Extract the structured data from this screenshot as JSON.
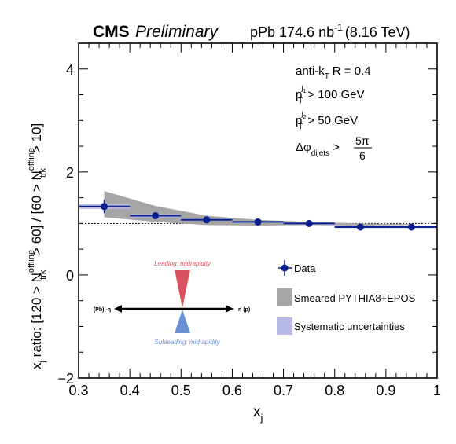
{
  "header": {
    "experiment": "CMS",
    "status": "Preliminary",
    "luminosity_prefix": "pPb 174.6 nb",
    "luminosity_exponent": "-1",
    "energy": "(8.16 TeV)"
  },
  "cuts": {
    "algorithm": "anti-k",
    "algorithm_sub": "T",
    "radius": "R = 0.4",
    "pt1_text": "> 100 GeV",
    "pt2_text": "> 50 GeV",
    "dphi_symbol": "Δφ",
    "dphi_sub": "dijets",
    "dphi_gt": ">",
    "dphi_num": "5π",
    "dphi_den": "6",
    "p": "p",
    "T": "T",
    "j1": "j",
    "j1_index": "1",
    "j2": "j",
    "j2_index": "2"
  },
  "legend": {
    "data": "Data",
    "model": "Smeared PYTHIA8+EPOS",
    "syst": "Systematic uncertainties"
  },
  "inset": {
    "leading": "Leading: midrapidity",
    "subleading": "Subleading: midrapidity",
    "left_label": "(Pb) -η",
    "right_label": "η (p)"
  },
  "colors": {
    "data": "#0a1f8f",
    "model_band": "#a6a6a6",
    "syst_band": "#b8b8e6",
    "leading": "#d9525f",
    "subleading": "#6c8fd6"
  },
  "chart_data": {
    "type": "scatter",
    "xlabel": "x",
    "xlabel_sub": "j",
    "ylabel": "x",
    "ylabel_sub": "j",
    "ylabel_rest": " ratio: [120 > N",
    "ylabel_sup1": "offline",
    "ylabel_sub1": "trk",
    "ylabel_mid": " > 60] / [60 > N",
    "ylabel_sup2": "offline",
    "ylabel_sub2": "trk",
    "ylabel_end": " > 10]",
    "xlim": [
      0.3,
      1.0
    ],
    "ylim": [
      -2,
      4.5
    ],
    "xticks": [
      0.3,
      0.4,
      0.5,
      0.6,
      0.7,
      0.8,
      0.9,
      1.0
    ],
    "xtick_labels": [
      "0.3",
      "0.4",
      "0.5",
      "0.6",
      "0.7",
      "0.8",
      "0.9",
      "1"
    ],
    "yticks": [
      -2,
      0,
      2,
      4
    ],
    "ytick_labels": [
      "−2",
      "0",
      "2",
      "4"
    ],
    "reference_line": 1.0,
    "series": [
      {
        "name": "Data",
        "bins": [
          [
            0.3,
            0.4
          ],
          [
            0.4,
            0.5
          ],
          [
            0.5,
            0.6
          ],
          [
            0.6,
            0.7
          ],
          [
            0.7,
            0.8
          ],
          [
            0.8,
            0.9
          ],
          [
            0.9,
            1.0
          ]
        ],
        "x": [
          0.35,
          0.45,
          0.55,
          0.65,
          0.75,
          0.85,
          0.95
        ],
        "y": [
          1.33,
          1.15,
          1.07,
          1.03,
          1.0,
          0.93,
          0.93
        ],
        "yerr": [
          0.13,
          0.05,
          0.04,
          0.04,
          0.04,
          0.03,
          0.03
        ],
        "syst": [
          0.05,
          0.03,
          0.02,
          0.02,
          0.02,
          0.02,
          0.02
        ]
      },
      {
        "name": "Smeared PYTHIA8+EPOS",
        "x": [
          0.35,
          0.45,
          0.55,
          0.65,
          0.75,
          0.85,
          0.95
        ],
        "low": [
          1.12,
          1.03,
          0.97,
          0.96,
          0.97,
          0.96,
          0.97
        ],
        "high": [
          1.63,
          1.34,
          1.15,
          1.07,
          1.03,
          1.0,
          0.99
        ]
      }
    ]
  }
}
